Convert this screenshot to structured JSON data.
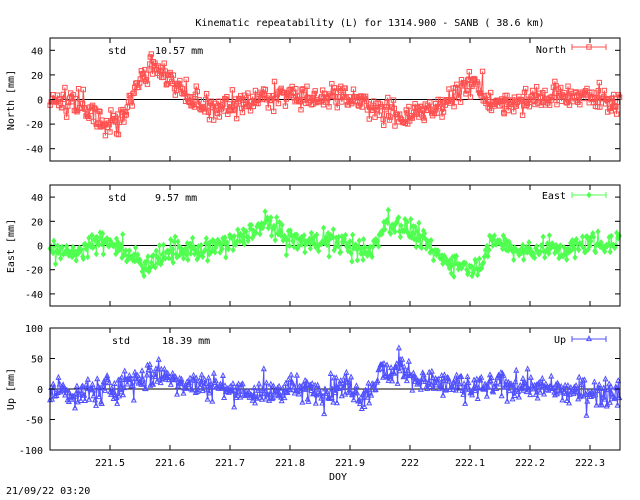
{
  "title": "Kinematic repeatability (L) for 1314.900 - SANB  ( 38.6 km)",
  "timestamp": "21/09/22 03:20",
  "colors": {
    "north": "#ff5050",
    "east": "#50ff50",
    "up": "#5050ff",
    "axis": "#000000"
  },
  "chart_data": [
    {
      "type": "scatter",
      "series_name": "North",
      "legend_label": "North",
      "ylabel": "North [mm]",
      "std_label": "std",
      "std_value": "10.57 mm",
      "marker": "square",
      "xlim": [
        221.4,
        222.35
      ],
      "ylim": [
        -50,
        50
      ],
      "yticks": [
        -40,
        -20,
        0,
        20,
        40
      ],
      "trend": [
        [
          221.4,
          0
        ],
        [
          221.45,
          -2
        ],
        [
          221.48,
          -15
        ],
        [
          221.5,
          -20
        ],
        [
          221.52,
          -15
        ],
        [
          221.55,
          15
        ],
        [
          221.57,
          28
        ],
        [
          221.6,
          20
        ],
        [
          221.63,
          0
        ],
        [
          221.66,
          -8
        ],
        [
          221.7,
          -5
        ],
        [
          221.75,
          2
        ],
        [
          221.8,
          3
        ],
        [
          221.85,
          2
        ],
        [
          221.9,
          3
        ],
        [
          221.95,
          -10
        ],
        [
          222.0,
          -15
        ],
        [
          222.05,
          -5
        ],
        [
          222.08,
          5
        ],
        [
          222.1,
          15
        ],
        [
          222.13,
          0
        ],
        [
          222.17,
          -5
        ],
        [
          222.2,
          2
        ],
        [
          222.25,
          4
        ],
        [
          222.3,
          2
        ],
        [
          222.35,
          -3
        ]
      ]
    },
    {
      "type": "scatter",
      "series_name": "East",
      "legend_label": "East",
      "ylabel": "East [mm]",
      "std_label": "std",
      "std_value": "9.57 mm",
      "marker": "diamond",
      "xlim": [
        221.4,
        222.35
      ],
      "ylim": [
        -50,
        50
      ],
      "yticks": [
        -40,
        -20,
        0,
        20,
        40
      ],
      "trend": [
        [
          221.4,
          0
        ],
        [
          221.43,
          -8
        ],
        [
          221.47,
          0
        ],
        [
          221.5,
          5
        ],
        [
          221.53,
          -10
        ],
        [
          221.56,
          -15
        ],
        [
          221.6,
          -5
        ],
        [
          221.65,
          -5
        ],
        [
          221.7,
          3
        ],
        [
          221.73,
          8
        ],
        [
          221.76,
          20
        ],
        [
          221.79,
          8
        ],
        [
          221.82,
          2
        ],
        [
          221.86,
          5
        ],
        [
          221.9,
          0
        ],
        [
          221.93,
          -8
        ],
        [
          221.96,
          18
        ],
        [
          221.99,
          15
        ],
        [
          222.02,
          5
        ],
        [
          222.05,
          -10
        ],
        [
          222.08,
          -15
        ],
        [
          222.11,
          -18
        ],
        [
          222.14,
          5
        ],
        [
          222.18,
          -5
        ],
        [
          222.22,
          -3
        ],
        [
          222.26,
          -5
        ],
        [
          222.3,
          2
        ],
        [
          222.35,
          3
        ]
      ]
    },
    {
      "type": "scatter",
      "series_name": "Up",
      "legend_label": "Up",
      "ylabel": "Up [mm]",
      "std_label": "std",
      "std_value": "18.39 mm",
      "marker": "triangle",
      "xlim": [
        221.4,
        222.35
      ],
      "ylim": [
        -100,
        100
      ],
      "yticks": [
        -100,
        -50,
        0,
        50,
        100
      ],
      "trend": [
        [
          221.4,
          0
        ],
        [
          221.45,
          -10
        ],
        [
          221.5,
          0
        ],
        [
          221.55,
          15
        ],
        [
          221.58,
          25
        ],
        [
          221.62,
          10
        ],
        [
          221.68,
          5
        ],
        [
          221.72,
          -5
        ],
        [
          221.76,
          -10
        ],
        [
          221.8,
          0
        ],
        [
          221.85,
          -5
        ],
        [
          221.9,
          5
        ],
        [
          221.92,
          -20
        ],
        [
          221.95,
          25
        ],
        [
          221.98,
          30
        ],
        [
          222.02,
          15
        ],
        [
          222.06,
          5
        ],
        [
          222.1,
          0
        ],
        [
          222.15,
          5
        ],
        [
          222.2,
          5
        ],
        [
          222.25,
          -5
        ],
        [
          222.3,
          -5
        ],
        [
          222.35,
          -5
        ]
      ]
    }
  ],
  "xaxis": {
    "label": "DOY",
    "ticks": [
      221.5,
      221.6,
      221.7,
      221.8,
      221.9,
      222.0,
      222.1,
      222.2,
      222.3
    ],
    "tick_labels": [
      "221.5",
      "221.6",
      "221.7",
      "221.8",
      "221.9",
      "222",
      "222.1",
      "222.2",
      "222.3"
    ]
  }
}
